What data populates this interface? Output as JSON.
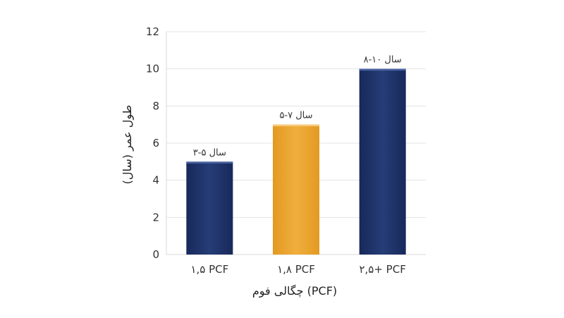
{
  "chart_data": {
    "type": "bar",
    "categories": [
      "۱,۵ PCF",
      "۱,۸ PCF",
      "۲,۵+ PCF"
    ],
    "values": [
      5,
      7,
      10
    ],
    "data_labels": [
      "۳-۵ سال",
      "۵-۷ سال",
      "۸-۱۰ سال"
    ],
    "colors": [
      "#1f3468",
      "#e9a22b",
      "#1f3468"
    ],
    "title": "",
    "xlabel": "چگالی فوم (PCF)",
    "ylabel": "طول عمر (سال)",
    "ylim": [
      0,
      12
    ],
    "yticks": [
      0,
      2,
      4,
      6,
      8,
      10,
      12
    ],
    "ytick_labels": [
      "0",
      "2",
      "4",
      "6",
      "8",
      "10",
      "12"
    ],
    "grid": true,
    "legend": "none"
  }
}
